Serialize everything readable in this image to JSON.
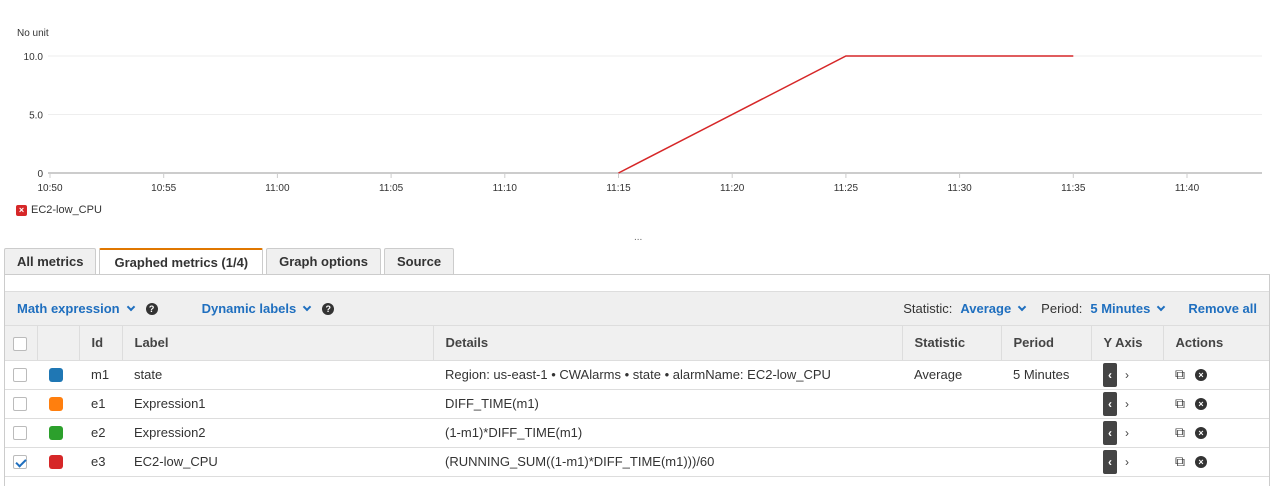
{
  "chart_data": {
    "type": "line",
    "ylabel": "No unit",
    "ylim": [
      0,
      10
    ],
    "yticks": [
      "0",
      "5.0",
      "10.0"
    ],
    "ytick_values": [
      0,
      5,
      10
    ],
    "xticks": [
      "10:50",
      "10:55",
      "11:00",
      "11:05",
      "11:10",
      "11:15",
      "11:20",
      "11:25",
      "11:30",
      "11:35",
      "11:40"
    ],
    "series": [
      {
        "name": "EC2-low_CPU",
        "color": "#d62728",
        "x": [
          "11:15",
          "11:25",
          "11:35"
        ],
        "y": [
          0,
          10,
          10
        ]
      }
    ],
    "legend": "bottom-left",
    "grid": true
  },
  "tabs": [
    "All metrics",
    "Graphed metrics (1/4)",
    "Graph options",
    "Source"
  ],
  "toolbar": {
    "math": "Math expression",
    "dynamic": "Dynamic labels",
    "statistic_label": "Statistic:",
    "statistic": "Average",
    "period_label": "Period:",
    "period": "5 Minutes",
    "remove_all": "Remove all"
  },
  "columns": [
    "Id",
    "Label",
    "Details",
    "Statistic",
    "Period",
    "Y Axis",
    "Actions"
  ],
  "rows": [
    {
      "checked": false,
      "color": "#1f77b4",
      "id": "m1",
      "label": "state",
      "details": "Region: us-east-1 • CWAlarms • state • alarmName: EC2-low_CPU",
      "statistic": "Average",
      "period": "5 Minutes"
    },
    {
      "checked": false,
      "color": "#ff7f0e",
      "id": "e1",
      "label": "Expression1",
      "details": "DIFF_TIME(m1)",
      "statistic": "",
      "period": ""
    },
    {
      "checked": false,
      "color": "#2ca02c",
      "id": "e2",
      "label": "Expression2",
      "details": "(1-m1)*DIFF_TIME(m1)",
      "statistic": "",
      "period": ""
    },
    {
      "checked": true,
      "color": "#d62728",
      "id": "e3",
      "label": "EC2-low_CPU",
      "details": "(RUNNING_SUM((1-m1)*DIFF_TIME(m1)))/60",
      "statistic": "",
      "period": ""
    }
  ],
  "resize_handle": "..."
}
